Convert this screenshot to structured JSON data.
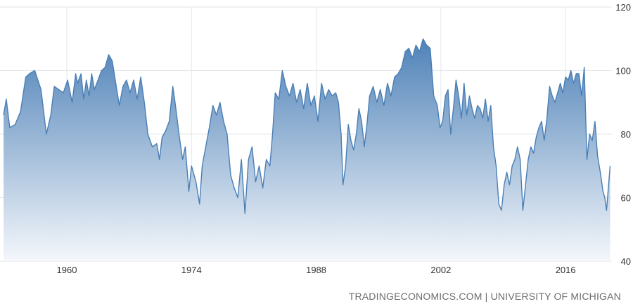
{
  "source": "TRADINGECONOMICS.COM | UNIVERSITY OF MICHIGAN",
  "colors": {
    "line": "#4a7fb5",
    "fill_top": "#4f82b8",
    "fill_bottom": "#f4f7fb",
    "grid": "#e3e6ea",
    "axis_text": "#333333",
    "source_text": "#6d6d6d"
  },
  "chart_data": {
    "type": "area",
    "title": "",
    "xlabel": "",
    "ylabel": "",
    "xlim": [
      1952.5,
      2021.2
    ],
    "ylim": [
      40,
      120
    ],
    "x_ticks": [
      1960,
      1974,
      1988,
      2002,
      2016
    ],
    "x_tick_labels": [
      "1960",
      "1974",
      "1988",
      "2002",
      "2016"
    ],
    "y_ticks": [
      40,
      60,
      80,
      100,
      120
    ],
    "y_tick_labels": [
      "40",
      "60",
      "80",
      "100",
      "120"
    ],
    "y_axis_position": "right",
    "grid": "vertical and horizontal",
    "x": [
      1952.9,
      1953.2,
      1953.6,
      1954.2,
      1954.8,
      1955.4,
      1955.8,
      1956.4,
      1957.1,
      1957.7,
      1958.2,
      1958.6,
      1959.1,
      1959.6,
      1960.1,
      1960.6,
      1961.0,
      1961.2,
      1961.6,
      1961.9,
      1962.2,
      1962.5,
      1962.8,
      1963.1,
      1963.5,
      1963.9,
      1964.3,
      1964.7,
      1965.1,
      1965.5,
      1965.9,
      1966.3,
      1966.7,
      1967.1,
      1967.5,
      1967.9,
      1968.3,
      1968.7,
      1969.1,
      1969.6,
      1970.1,
      1970.4,
      1970.7,
      1971.1,
      1971.5,
      1971.9,
      1972.2,
      1972.6,
      1973.0,
      1973.3,
      1973.7,
      1974.0,
      1974.5,
      1974.9,
      1975.2,
      1975.6,
      1976.0,
      1976.4,
      1976.8,
      1977.2,
      1977.6,
      1978.0,
      1978.4,
      1978.8,
      1979.2,
      1979.6,
      1980.0,
      1980.4,
      1980.8,
      1981.2,
      1981.6,
      1982.0,
      1982.4,
      1982.8,
      1983.1,
      1983.4,
      1983.8,
      1984.2,
      1984.6,
      1985.0,
      1985.4,
      1985.8,
      1986.2,
      1986.6,
      1987.0,
      1987.4,
      1987.8,
      1988.2,
      1988.6,
      1989.0,
      1989.4,
      1989.8,
      1990.2,
      1990.5,
      1990.8,
      1991.0,
      1991.3,
      1991.6,
      1991.9,
      1992.2,
      1992.5,
      1992.8,
      1993.1,
      1993.4,
      1993.7,
      1994.0,
      1994.4,
      1994.8,
      1995.2,
      1995.6,
      1996.0,
      1996.4,
      1996.8,
      1997.2,
      1997.6,
      1998.0,
      1998.4,
      1998.8,
      1999.2,
      1999.6,
      2000.0,
      2000.4,
      2000.8,
      2001.2,
      2001.6,
      2001.9,
      2002.2,
      2002.5,
      2002.8,
      2003.1,
      2003.4,
      2003.7,
      2004.0,
      2004.3,
      2004.6,
      2004.9,
      2005.2,
      2005.5,
      2005.8,
      2006.1,
      2006.4,
      2006.7,
      2007.0,
      2007.3,
      2007.6,
      2007.9,
      2008.2,
      2008.5,
      2008.8,
      2009.1,
      2009.4,
      2009.7,
      2010.0,
      2010.3,
      2010.6,
      2010.9,
      2011.2,
      2011.5,
      2011.8,
      2012.1,
      2012.4,
      2012.7,
      2013.0,
      2013.3,
      2013.6,
      2013.9,
      2014.2,
      2014.5,
      2014.8,
      2015.1,
      2015.4,
      2015.7,
      2016.0,
      2016.3,
      2016.6,
      2016.9,
      2017.2,
      2017.5,
      2017.8,
      2018.1,
      2018.4,
      2018.7,
      2019.0,
      2019.3,
      2019.6,
      2019.9,
      2020.2,
      2020.4,
      2020.6,
      2020.8,
      2021.0
    ],
    "values": [
      86,
      91,
      82,
      83,
      87,
      98,
      99,
      100,
      94,
      80,
      86,
      95,
      94,
      93,
      97,
      90,
      99,
      96,
      99,
      91,
      97,
      92,
      99,
      94,
      97,
      100,
      101,
      105,
      103,
      96,
      89,
      95,
      97,
      93,
      97,
      91,
      98,
      90,
      80,
      76,
      77,
      72,
      79,
      81,
      84,
      95,
      89,
      80,
      72,
      76,
      62,
      70,
      65,
      58,
      70,
      76,
      82,
      89,
      86,
      90,
      84,
      80,
      67,
      63,
      60,
      72,
      55,
      72,
      76,
      65,
      70,
      63,
      72,
      70,
      80,
      93,
      91,
      100,
      95,
      92,
      96,
      90,
      94,
      88,
      96,
      89,
      92,
      84,
      96,
      91,
      94,
      92,
      93,
      90,
      80,
      64,
      70,
      83,
      78,
      75,
      80,
      88,
      84,
      76,
      83,
      92,
      95,
      90,
      94,
      89,
      96,
      92,
      98,
      99,
      101,
      106,
      107,
      104,
      108,
      106,
      110,
      108,
      107,
      92,
      89,
      82,
      84,
      92,
      94,
      80,
      88,
      97,
      92,
      85,
      96,
      86,
      92,
      88,
      85,
      89,
      88,
      85,
      91,
      84,
      89,
      76,
      70,
      58,
      56,
      64,
      68,
      64,
      70,
      72,
      76,
      72,
      56,
      64,
      72,
      76,
      74,
      79,
      82,
      84,
      78,
      85,
      95,
      92,
      90,
      93,
      96,
      93,
      98,
      97,
      100,
      96,
      99,
      99,
      92,
      101,
      72,
      80,
      78,
      84,
      73,
      68,
      62,
      60,
      56,
      63,
      70
    ]
  }
}
